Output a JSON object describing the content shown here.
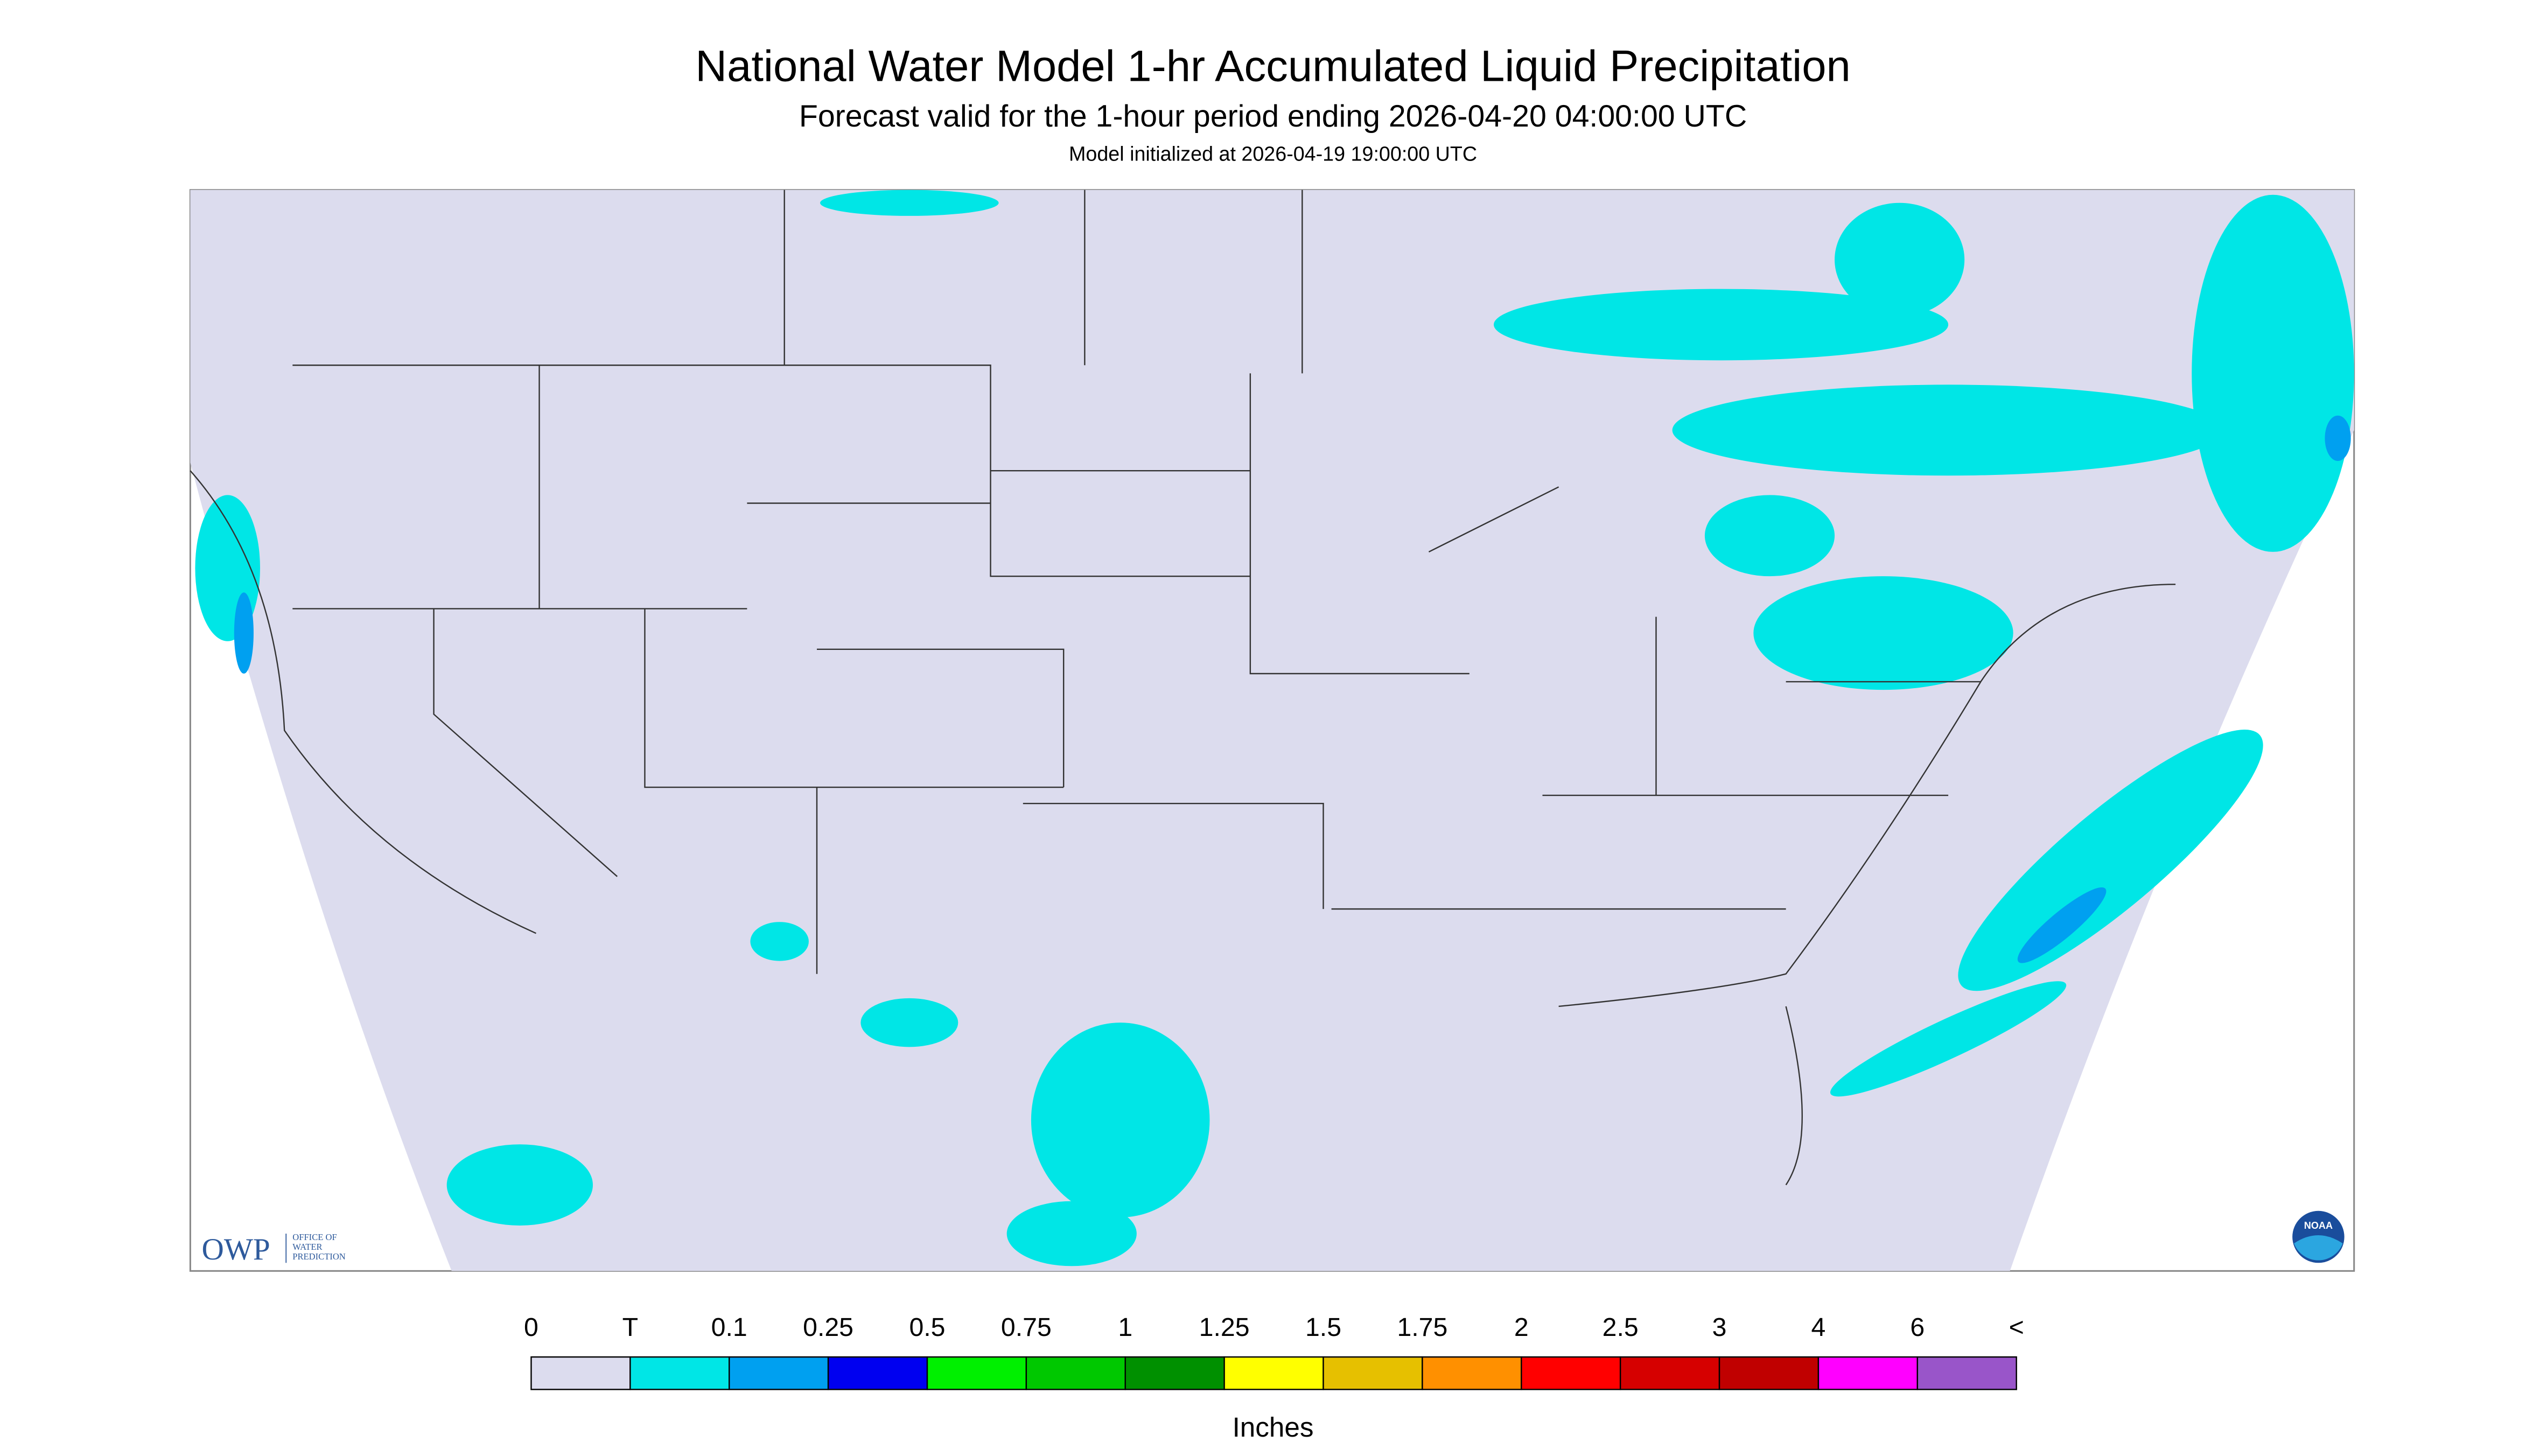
{
  "header": {
    "title": "National Water Model 1-hr Accumulated Liquid Precipitation",
    "subtitle": "Forecast valid for the 1-hour period ending 2026-04-20 04:00:00 UTC",
    "init": "Model initialized at 2026-04-19 19:00:00 UTC"
  },
  "logo": {
    "owp": "OWP",
    "office": [
      "OFFICE OF",
      "WATER",
      "PREDICTION"
    ],
    "noaa": "NOAA"
  },
  "legend": {
    "units": "Inches",
    "labels": [
      "0",
      "T",
      "0.1",
      "0.25",
      "0.5",
      "0.75",
      "1",
      "1.25",
      "1.5",
      "1.75",
      "2",
      "2.5",
      "3",
      "4",
      "6",
      "<"
    ],
    "colors": [
      "#dcdcee",
      "#00e6e6",
      "#00a0f0",
      "#0000f0",
      "#00f000",
      "#00c800",
      "#009000",
      "#ffff00",
      "#e6c000",
      "#ff9000",
      "#ff0000",
      "#d60000",
      "#c00000",
      "#ff00ff",
      "#9955c9"
    ]
  }
}
